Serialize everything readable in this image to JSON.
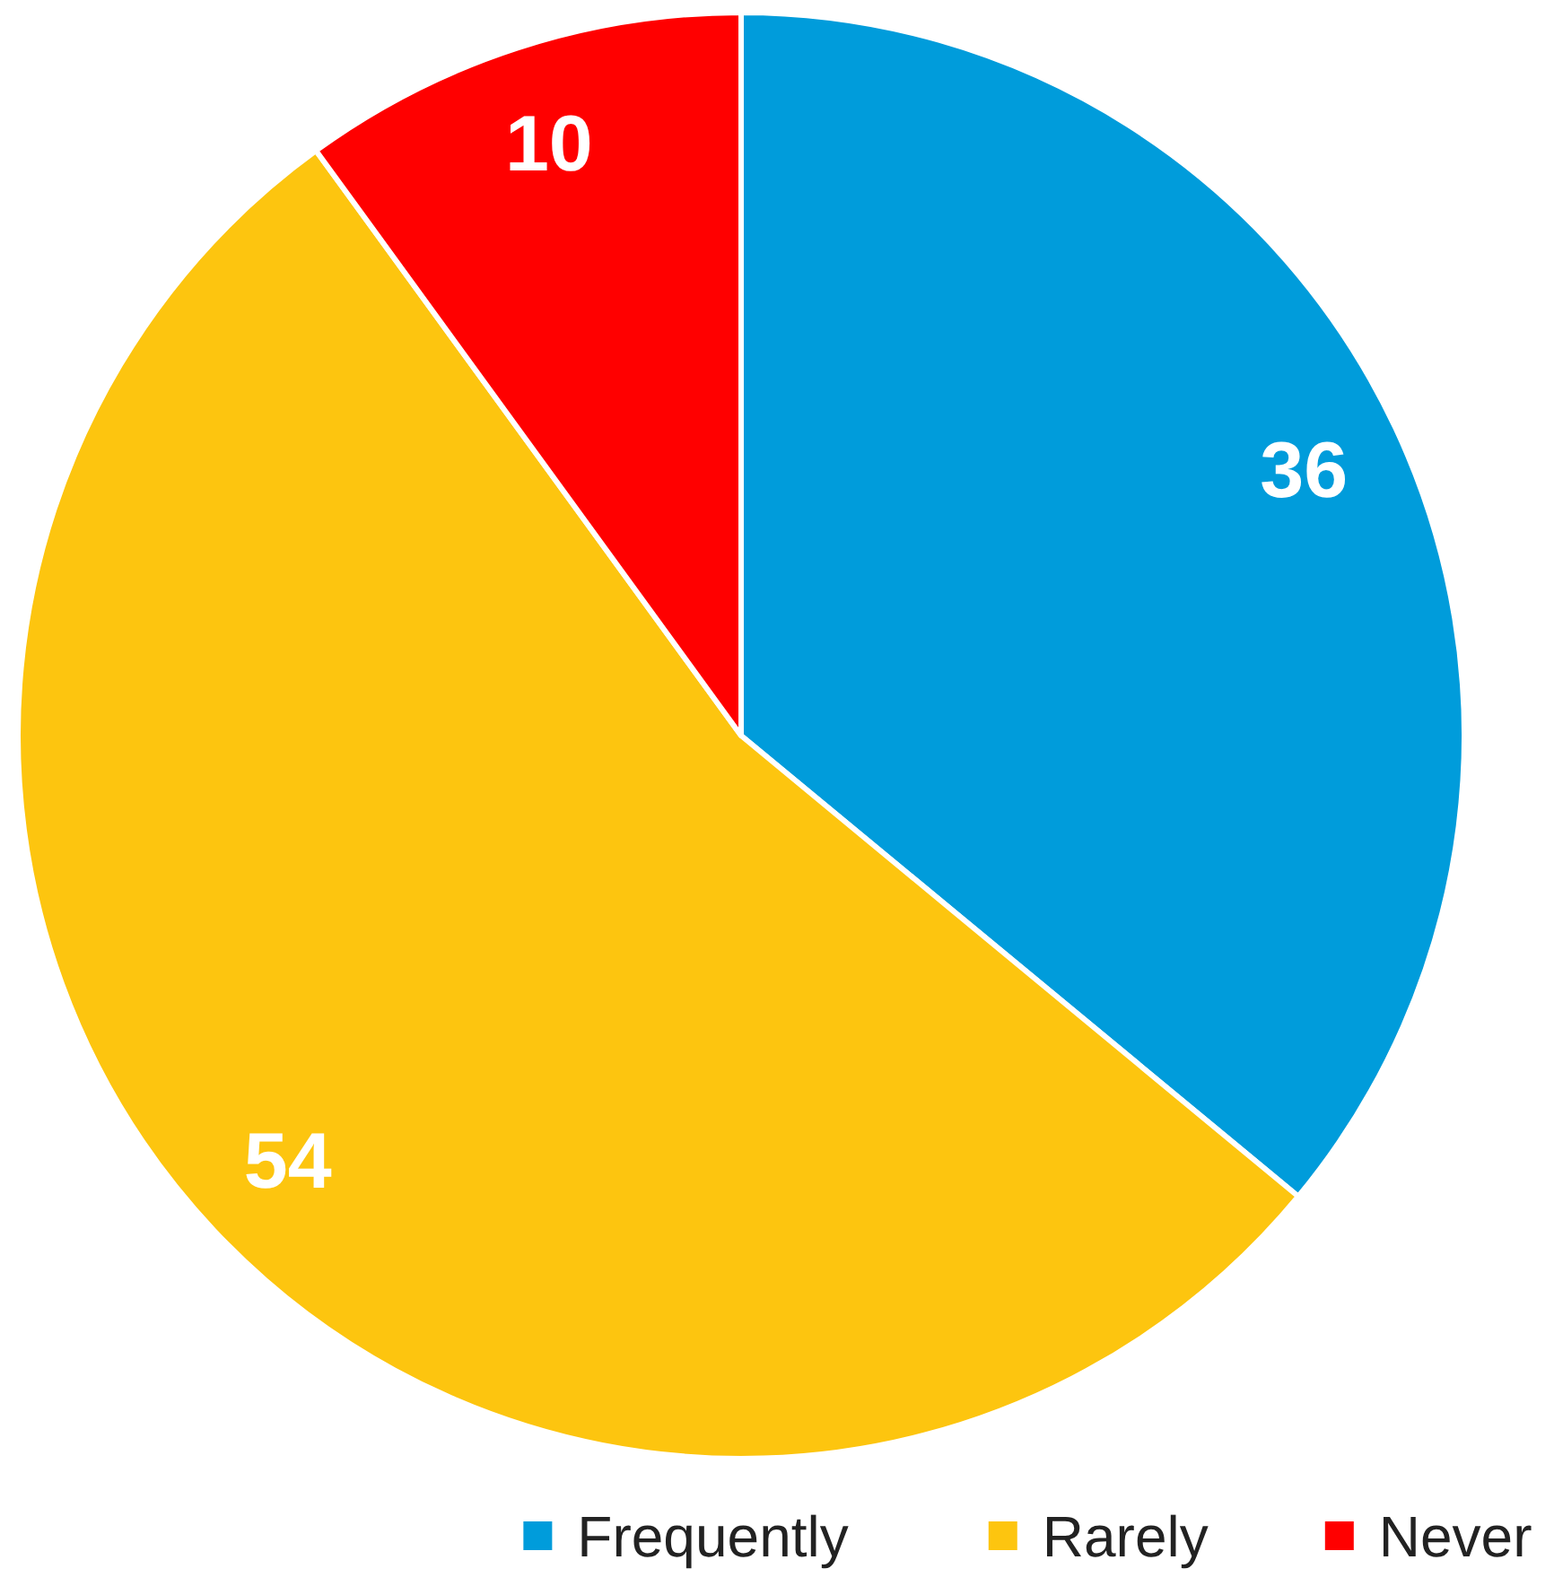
{
  "chart_data": {
    "type": "pie",
    "categories": [
      "Frequently",
      "Rarely",
      "Never"
    ],
    "values": [
      36,
      54,
      10
    ],
    "colors": [
      "#009cdb",
      "#fdc50f",
      "#ff0000"
    ],
    "data_labels": true,
    "legend": "bottom right"
  }
}
